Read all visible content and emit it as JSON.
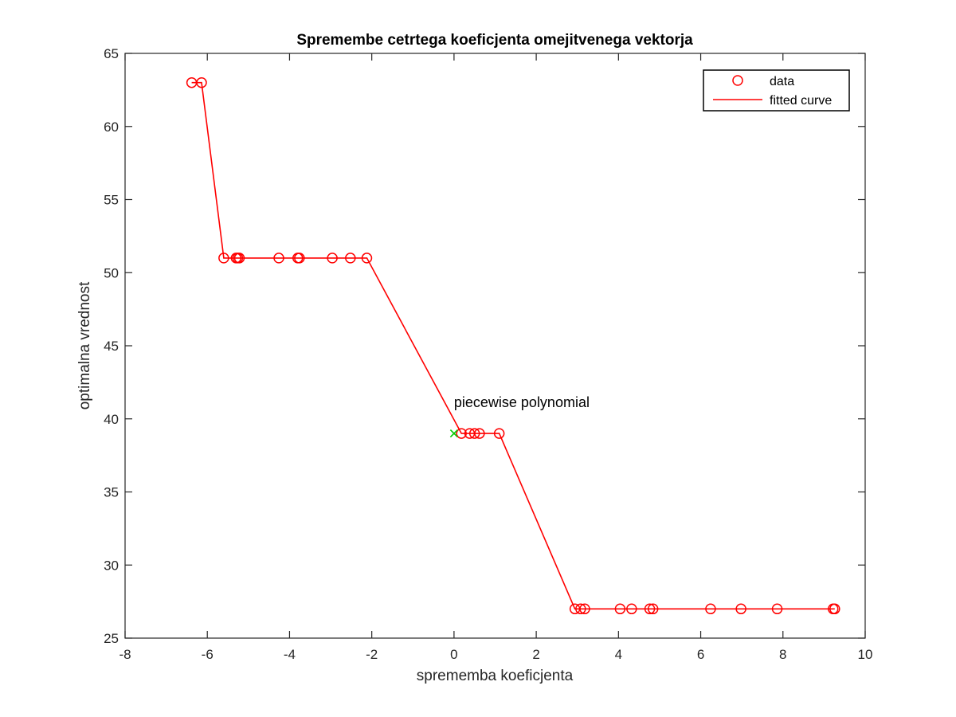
{
  "chart_data": {
    "type": "line",
    "title": "Spremembe cetrtega koeficjenta omejitvenega vektorja",
    "xlabel": "sprememba koeficjenta",
    "ylabel": "optimalna vrednost",
    "xlim": [
      -8,
      10
    ],
    "ylim": [
      25,
      65
    ],
    "xticks": [
      -8,
      -6,
      -4,
      -2,
      0,
      2,
      4,
      6,
      8,
      10
    ],
    "yticks": [
      25,
      30,
      35,
      40,
      45,
      50,
      55,
      60,
      65
    ],
    "grid": false,
    "legend_position": "top-right",
    "colors": {
      "data": "#ff0000",
      "curve": "#ff0000",
      "marker": "#00cc00",
      "axes": "#262626"
    },
    "series": [
      {
        "name": "data",
        "style": "markers-circle",
        "x": [
          -6.38,
          -6.14,
          -5.6,
          -5.3,
          -5.26,
          -5.22,
          -4.26,
          -3.8,
          -3.76,
          -2.96,
          -2.52,
          -2.12,
          0.18,
          0.38,
          0.5,
          0.62,
          1.1,
          2.94,
          3.08,
          3.18,
          4.04,
          4.32,
          4.76,
          4.84,
          6.24,
          6.98,
          7.86,
          9.22,
          9.26
        ],
        "y": [
          63,
          63,
          51,
          51,
          51,
          51,
          51,
          51,
          51,
          51,
          51,
          51,
          39,
          39,
          39,
          39,
          39,
          27,
          27,
          27,
          27,
          27,
          27,
          27,
          27,
          27,
          27,
          27,
          27
        ]
      },
      {
        "name": "fitted curve",
        "style": "line",
        "x": [
          -6.38,
          -6.14,
          -5.6,
          -5.3,
          -5.26,
          -5.22,
          -4.26,
          -3.8,
          -3.76,
          -2.96,
          -2.52,
          -2.12,
          0.18,
          0.38,
          0.5,
          0.62,
          1.1,
          2.94,
          3.08,
          3.18,
          4.04,
          4.32,
          4.76,
          4.84,
          6.24,
          6.98,
          7.86,
          9.22,
          9.26
        ],
        "y": [
          63,
          63,
          51,
          51,
          51,
          51,
          51,
          51,
          51,
          51,
          51,
          51,
          39,
          39,
          39,
          39,
          39,
          27,
          27,
          27,
          27,
          27,
          27,
          27,
          27,
          27,
          27,
          27,
          27
        ]
      }
    ],
    "annotations": [
      {
        "text": "piecewise polynomial",
        "x": 0,
        "y": 40.8
      }
    ],
    "special_marker": {
      "style": "x",
      "x": 0,
      "y": 39
    }
  }
}
